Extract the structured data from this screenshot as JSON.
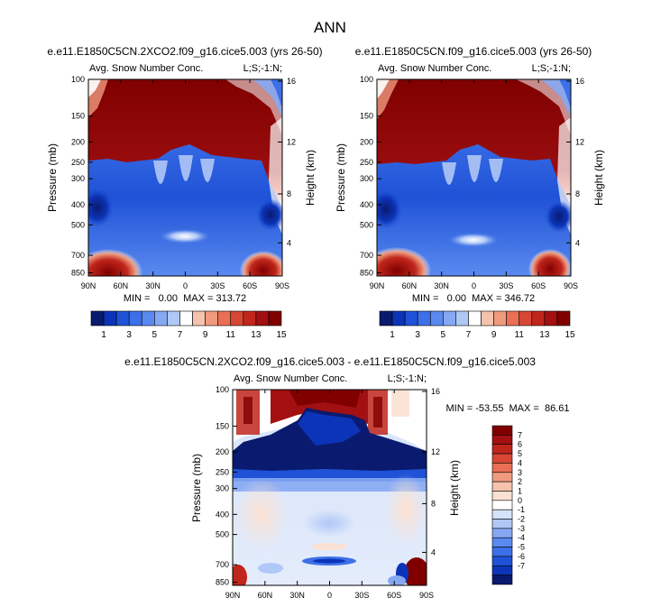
{
  "figure_title": "ANN",
  "colors": {
    "contour_scale": [
      "#0a1a6e",
      "#0c34b8",
      "#1f52d6",
      "#3d6fe8",
      "#5a8af0",
      "#86a8f3",
      "#b0c8f6",
      "#ffffff",
      "#f5c3ad",
      "#f09b7e",
      "#ea6f55",
      "#d84634",
      "#c0261c",
      "#a31011",
      "#800000"
    ],
    "diff_scale": [
      "#0a1a6e",
      "#0c34b8",
      "#1f52d6",
      "#3d6fe8",
      "#5a8af0",
      "#86a8f3",
      "#b0c8f6",
      "#d5e3f9",
      "#ffffff",
      "#fbe1d3",
      "#f5c3ad",
      "#f09b7e",
      "#ea6f55",
      "#d84634",
      "#c0261c",
      "#a31011",
      "#800000"
    ]
  },
  "chart_data": [
    {
      "type": "heatmap",
      "title": "e.e11.E1850C5CN.2XCO2.f09_g16.cice5.003 (yrs 26-50)",
      "subtitle_left": "Avg. Snow Number Conc.",
      "subtitle_right": "L;S;-1:N;",
      "xlabel": "",
      "ylabel": "Pressure (mb)",
      "ylabel_right": "Height (km)",
      "x_ticks": [
        "90N",
        "60N",
        "30N",
        "0",
        "30S",
        "60S",
        "90S"
      ],
      "y_ticks": [
        "100",
        "150",
        "200",
        "250",
        "300",
        "400",
        "500",
        "700",
        "850"
      ],
      "y2_ticks": [
        "16",
        "12",
        "8",
        "4"
      ],
      "stats": "MIN =   0.00  MAX = 313.72",
      "colorbar_labels": [
        "1",
        "3",
        "5",
        "7",
        "9",
        "11",
        "13",
        "15"
      ],
      "min": 0.0,
      "max": 313.72
    },
    {
      "type": "heatmap",
      "title": "e.e11.E1850C5CN.f09_g16.cice5.003 (yrs 26-50)",
      "subtitle_left": "Avg. Snow Number Conc.",
      "subtitle_right": "L;S;-1:N;",
      "xlabel": "",
      "ylabel": "Pressure (mb)",
      "ylabel_right": "Height (km)",
      "x_ticks": [
        "90N",
        "60N",
        "30N",
        "0",
        "30S",
        "60S",
        "90S"
      ],
      "y_ticks": [
        "100",
        "150",
        "200",
        "250",
        "300",
        "400",
        "500",
        "700",
        "850"
      ],
      "y2_ticks": [
        "16",
        "12",
        "8",
        "4"
      ],
      "stats": "MIN =   0.00  MAX = 346.72",
      "colorbar_labels": [
        "1",
        "3",
        "5",
        "7",
        "9",
        "11",
        "13",
        "15"
      ],
      "min": 0.0,
      "max": 346.72
    },
    {
      "type": "heatmap",
      "title": "e.e11.E1850C5CN.2XCO2.f09_g16.cice5.003 - e.e11.E1850C5CN.f09_g16.cice5.003",
      "subtitle_left": "Avg. Snow Number Conc.",
      "subtitle_right": "L;S;-1:N;",
      "xlabel": "",
      "ylabel": "Pressure (mb)",
      "ylabel_right": "Height (km)",
      "x_ticks": [
        "90N",
        "60N",
        "30N",
        "0",
        "30S",
        "60S",
        "90S"
      ],
      "y_ticks": [
        "100",
        "150",
        "200",
        "250",
        "300",
        "400",
        "500",
        "700",
        "850"
      ],
      "y2_ticks": [
        "16",
        "12",
        "8",
        "4"
      ],
      "stats": "MIN = -53.55  MAX =  86.61",
      "colorbar_labels": [
        "7",
        "6",
        "5",
        "4",
        "3",
        "2",
        "1",
        "0",
        "-1",
        "-2",
        "-3",
        "-4",
        "-5",
        "-6",
        "-7"
      ],
      "min": -53.55,
      "max": 86.61
    }
  ]
}
